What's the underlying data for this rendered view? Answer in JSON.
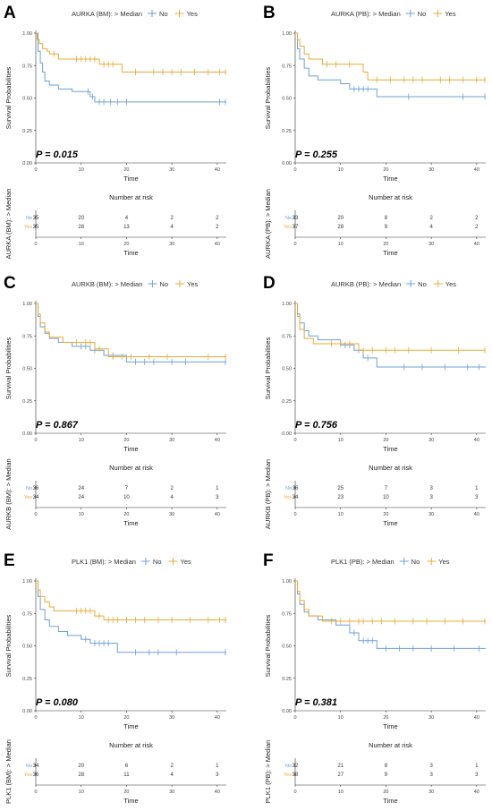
{
  "colors": {
    "no": "#6fa0d8",
    "yes": "#e7ac35",
    "axis": "#333333"
  },
  "legend_symbols": {
    "no": "+",
    "yes": "+"
  },
  "chart_data": [
    {
      "panel": "A",
      "type": "line",
      "step": true,
      "legend_title": "AURKA (BM): > Median",
      "legend_items": [
        "No",
        "Yes"
      ],
      "legend_position": "top-center",
      "xlabel": "Time",
      "ylabel": "Survival Probabilities",
      "xlim": [
        0,
        42
      ],
      "ylim": [
        0,
        1
      ],
      "x_ticks": [
        0,
        10,
        20,
        30,
        40
      ],
      "y_ticks": [
        "0.00",
        "0.25",
        "0.50",
        "0.75",
        "1.00"
      ],
      "p_value": "P = 0.015",
      "risk_title": "Number at risk",
      "risk_ylabel": "AURKA (BM): > Median",
      "risk_rows": [
        {
          "group": "No",
          "values": [
            "35",
            "20",
            "4",
            "2",
            "2"
          ]
        },
        {
          "group": "Yes",
          "values": [
            "35",
            "28",
            "13",
            "4",
            "2"
          ]
        }
      ],
      "series": [
        {
          "name": "No",
          "x": [
            0,
            0.5,
            1,
            1.5,
            2,
            3,
            5,
            8,
            12,
            13,
            42
          ],
          "y": [
            1.0,
            0.86,
            0.77,
            0.7,
            0.63,
            0.6,
            0.57,
            0.55,
            0.51,
            0.47,
            0.47
          ],
          "censor_x": [
            11.5,
            12.5,
            14,
            15,
            16.5,
            18,
            20,
            40.5,
            41.8
          ]
        },
        {
          "name": "Yes",
          "x": [
            0,
            0.3,
            0.8,
            1.5,
            2.5,
            3,
            5,
            14,
            19,
            42
          ],
          "y": [
            1.0,
            0.95,
            0.92,
            0.88,
            0.86,
            0.84,
            0.8,
            0.76,
            0.7,
            0.7
          ],
          "censor_x": [
            4,
            9,
            10,
            11,
            12,
            13,
            15,
            16,
            17,
            22,
            26,
            28,
            30,
            32,
            35,
            38,
            40.5,
            41.8
          ]
        }
      ]
    },
    {
      "panel": "B",
      "type": "line",
      "step": true,
      "legend_title": "AURKA (PB): > Median",
      "legend_items": [
        "No",
        "Yes"
      ],
      "legend_position": "top-center",
      "xlabel": "Time",
      "ylabel": "Survival Probabilities",
      "xlim": [
        0,
        42
      ],
      "ylim": [
        0,
        1
      ],
      "x_ticks": [
        0,
        10,
        20,
        30,
        40
      ],
      "y_ticks": [
        "0.00",
        "0.25",
        "0.50",
        "0.75",
        "1.00"
      ],
      "p_value": "P = 0.255",
      "risk_title": "Number at risk",
      "risk_ylabel": "AURKA (PB): > Median",
      "risk_rows": [
        {
          "group": "No",
          "values": [
            "33",
            "20",
            "8",
            "2",
            "2"
          ]
        },
        {
          "group": "Yes",
          "values": [
            "37",
            "28",
            "9",
            "4",
            "2"
          ]
        }
      ],
      "series": [
        {
          "name": "No",
          "x": [
            0,
            0.5,
            1,
            2,
            3,
            5,
            10,
            12,
            18,
            42
          ],
          "y": [
            1.0,
            0.88,
            0.8,
            0.73,
            0.67,
            0.64,
            0.61,
            0.57,
            0.51,
            0.51
          ],
          "censor_x": [
            13,
            14,
            15,
            16,
            25,
            37,
            41.8
          ]
        },
        {
          "name": "Yes",
          "x": [
            0,
            0.5,
            1,
            2,
            3,
            6,
            15,
            16,
            42
          ],
          "y": [
            1.0,
            0.95,
            0.9,
            0.84,
            0.8,
            0.76,
            0.7,
            0.64,
            0.64
          ],
          "censor_x": [
            7,
            9,
            12,
            18,
            21,
            24,
            26,
            28,
            32,
            34,
            37,
            40,
            41.8
          ]
        }
      ]
    },
    {
      "panel": "C",
      "type": "line",
      "step": true,
      "legend_title": "AURKB (BM): > Median",
      "legend_items": [
        "No",
        "Yes"
      ],
      "legend_position": "top-center",
      "xlabel": "Time",
      "ylabel": "Survival Probabilities",
      "xlim": [
        0,
        42
      ],
      "ylim": [
        0,
        1
      ],
      "x_ticks": [
        0,
        10,
        20,
        30,
        40
      ],
      "y_ticks": [
        "0.00",
        "0.25",
        "0.50",
        "0.75",
        "1.00"
      ],
      "p_value": "P = 0.867",
      "risk_title": "Number at risk",
      "risk_ylabel": "AURKB (BM): > Median",
      "risk_rows": [
        {
          "group": "No",
          "values": [
            "36",
            "24",
            "7",
            "2",
            "1"
          ]
        },
        {
          "group": "Yes",
          "values": [
            "34",
            "24",
            "10",
            "4",
            "3"
          ]
        }
      ],
      "series": [
        {
          "name": "No",
          "x": [
            0,
            0.5,
            1,
            2,
            3,
            5,
            8,
            12,
            15,
            20,
            42
          ],
          "y": [
            1.0,
            0.9,
            0.82,
            0.77,
            0.73,
            0.7,
            0.67,
            0.64,
            0.6,
            0.55,
            0.55
          ],
          "censor_x": [
            10,
            11,
            13,
            17,
            22,
            24,
            26,
            30,
            33,
            41.8
          ]
        },
        {
          "name": "Yes",
          "x": [
            0,
            0.5,
            1,
            2,
            3,
            6,
            13,
            16,
            42
          ],
          "y": [
            1.0,
            0.92,
            0.85,
            0.78,
            0.74,
            0.7,
            0.65,
            0.59,
            0.59
          ],
          "censor_x": [
            9,
            11,
            12,
            14,
            17,
            19,
            21,
            25,
            29,
            38,
            41.8
          ]
        }
      ]
    },
    {
      "panel": "D",
      "type": "line",
      "step": true,
      "legend_title": "AURKB (PB): > Median",
      "legend_items": [
        "No",
        "Yes"
      ],
      "legend_position": "top-center",
      "xlabel": "Time",
      "ylabel": "Survival Probabilities",
      "xlim": [
        0,
        42
      ],
      "ylim": [
        0,
        1
      ],
      "x_ticks": [
        0,
        10,
        20,
        30,
        40
      ],
      "y_ticks": [
        "0.00",
        "0.25",
        "0.50",
        "0.75",
        "1.00"
      ],
      "p_value": "P = 0.756",
      "risk_title": "Number at risk",
      "risk_ylabel": "AURKB (PB): > Median",
      "risk_rows": [
        {
          "group": "No",
          "values": [
            "36",
            "25",
            "7",
            "3",
            "1"
          ]
        },
        {
          "group": "Yes",
          "values": [
            "34",
            "23",
            "10",
            "3",
            "3"
          ]
        }
      ],
      "series": [
        {
          "name": "No",
          "x": [
            0,
            0.5,
            1,
            2,
            3,
            5,
            10,
            13,
            15,
            18,
            42
          ],
          "y": [
            1.0,
            0.92,
            0.85,
            0.79,
            0.75,
            0.72,
            0.68,
            0.64,
            0.58,
            0.51,
            0.51
          ],
          "censor_x": [
            11,
            12,
            14,
            16,
            24,
            28,
            33,
            38,
            40.5
          ]
        },
        {
          "name": "Yes",
          "x": [
            0,
            0.5,
            1,
            2,
            4,
            14,
            42
          ],
          "y": [
            1.0,
            0.9,
            0.8,
            0.73,
            0.69,
            0.64,
            0.64
          ],
          "censor_x": [
            8,
            10,
            12,
            15,
            17,
            20,
            22,
            25,
            30,
            36,
            41.8
          ]
        }
      ]
    },
    {
      "panel": "E",
      "type": "line",
      "step": true,
      "legend_title": "PLK1 (BM): > Median",
      "legend_items": [
        "No",
        "Yes"
      ],
      "legend_position": "top-center",
      "xlabel": "Time",
      "ylabel": "Survival Probabilities",
      "xlim": [
        0,
        42
      ],
      "ylim": [
        0,
        1
      ],
      "x_ticks": [
        0,
        10,
        20,
        30,
        40
      ],
      "y_ticks": [
        "0.00",
        "0.25",
        "0.50",
        "0.75",
        "1.00"
      ],
      "p_value": "P = 0.080",
      "risk_title": "Number at risk",
      "risk_ylabel": "PLK1 (BM): > Median",
      "risk_rows": [
        {
          "group": "No",
          "values": [
            "34",
            "20",
            "6",
            "2",
            "1"
          ]
        },
        {
          "group": "Yes",
          "values": [
            "36",
            "28",
            "11",
            "4",
            "3"
          ]
        }
      ],
      "series": [
        {
          "name": "No",
          "x": [
            0,
            0.5,
            1,
            2,
            3,
            5,
            7,
            10,
            12,
            18,
            42
          ],
          "y": [
            1.0,
            0.88,
            0.78,
            0.7,
            0.65,
            0.61,
            0.58,
            0.55,
            0.52,
            0.45,
            0.45
          ],
          "censor_x": [
            11,
            13,
            14,
            15,
            16,
            22,
            25,
            27,
            31,
            41.8
          ]
        },
        {
          "name": "Yes",
          "x": [
            0,
            0.5,
            1,
            2,
            3,
            4,
            13,
            15,
            42
          ],
          "y": [
            1.0,
            0.93,
            0.88,
            0.84,
            0.8,
            0.77,
            0.73,
            0.7,
            0.7
          ],
          "censor_x": [
            9,
            10,
            11,
            12,
            14,
            16,
            17,
            18,
            20,
            22,
            24,
            27,
            30,
            34,
            38,
            40.5,
            41.8
          ]
        }
      ]
    },
    {
      "panel": "F",
      "type": "line",
      "step": true,
      "legend_title": "PLK1 (PB): > Median",
      "legend_items": [
        "No",
        "Yes"
      ],
      "legend_position": "top-center",
      "xlabel": "Time",
      "ylabel": "Survival Probabilities",
      "xlim": [
        0,
        42
      ],
      "ylim": [
        0,
        1
      ],
      "x_ticks": [
        0,
        10,
        20,
        30,
        40
      ],
      "y_ticks": [
        "0.00",
        "0.25",
        "0.50",
        "0.75",
        "1.00"
      ],
      "p_value": "P = 0.381",
      "risk_title": "Number at risk",
      "risk_ylabel": "PLK1 (PB): > Median",
      "risk_rows": [
        {
          "group": "No",
          "values": [
            "32",
            "21",
            "8",
            "3",
            "1"
          ]
        },
        {
          "group": "Yes",
          "values": [
            "38",
            "27",
            "9",
            "3",
            "3"
          ]
        }
      ],
      "series": [
        {
          "name": "No",
          "x": [
            0,
            0.5,
            1,
            2,
            3,
            5,
            9,
            12,
            14,
            18,
            42
          ],
          "y": [
            1.0,
            0.9,
            0.82,
            0.76,
            0.73,
            0.7,
            0.66,
            0.6,
            0.54,
            0.48,
            0.48
          ],
          "censor_x": [
            13,
            15,
            16,
            17,
            20,
            23,
            26,
            30,
            35,
            40.5
          ]
        },
        {
          "name": "Yes",
          "x": [
            0,
            0.5,
            1,
            2,
            3,
            6,
            42
          ],
          "y": [
            1.0,
            0.92,
            0.85,
            0.78,
            0.73,
            0.69,
            0.69
          ],
          "censor_x": [
            8,
            10,
            12,
            14,
            15,
            17,
            19,
            22,
            26,
            29,
            33,
            37,
            41.8
          ]
        }
      ]
    }
  ]
}
